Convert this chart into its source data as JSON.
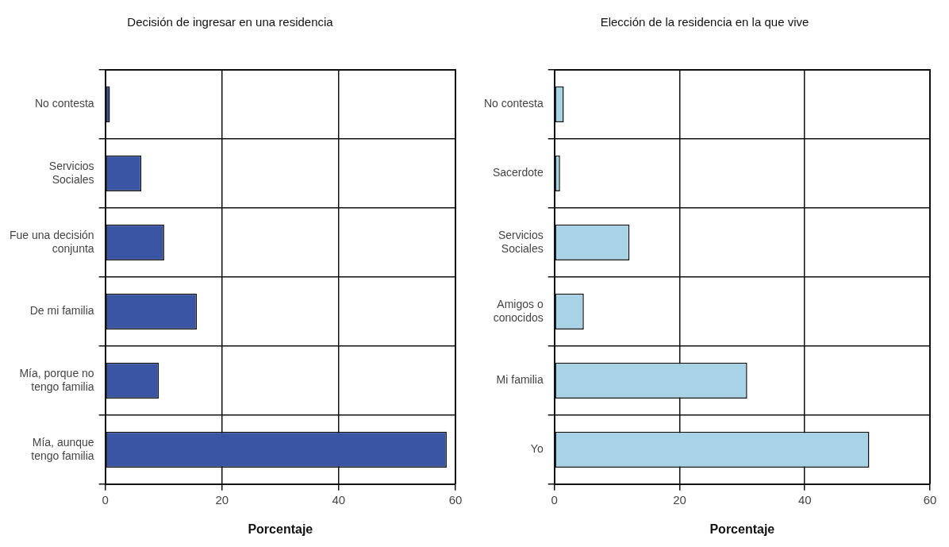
{
  "chart_data": [
    {
      "type": "bar",
      "orientation": "horizontal",
      "title": "Decisión de ingresar en una residencia",
      "xlabel": "Porcentaje",
      "categories": [
        "No contesta",
        "Servicios Sociales",
        "Fue una decisión conjunta",
        "De mi familia",
        "Mía, porque no tengo familia",
        "Mía, aunque tengo familia"
      ],
      "values": [
        0.8,
        6.2,
        10.1,
        15.7,
        9.2,
        58.5
      ],
      "color": "#3a55a4",
      "xlim": [
        0,
        60
      ],
      "xticks": [
        0,
        20,
        40,
        60
      ],
      "grid": true
    },
    {
      "type": "bar",
      "orientation": "horizontal",
      "title": "Elección de la residencia en la que vive",
      "xlabel": "Porcentaje",
      "categories": [
        "No contesta",
        "Sacerdote",
        "Servicios Sociales",
        "Amigos o conocidos",
        "Mi familia",
        "Yo"
      ],
      "values": [
        1.5,
        0.9,
        12.0,
        4.7,
        30.8,
        50.3
      ],
      "color": "#a8d3e6",
      "xlim": [
        0,
        60
      ],
      "xticks": [
        0,
        20,
        40,
        60
      ],
      "grid": true
    }
  ]
}
